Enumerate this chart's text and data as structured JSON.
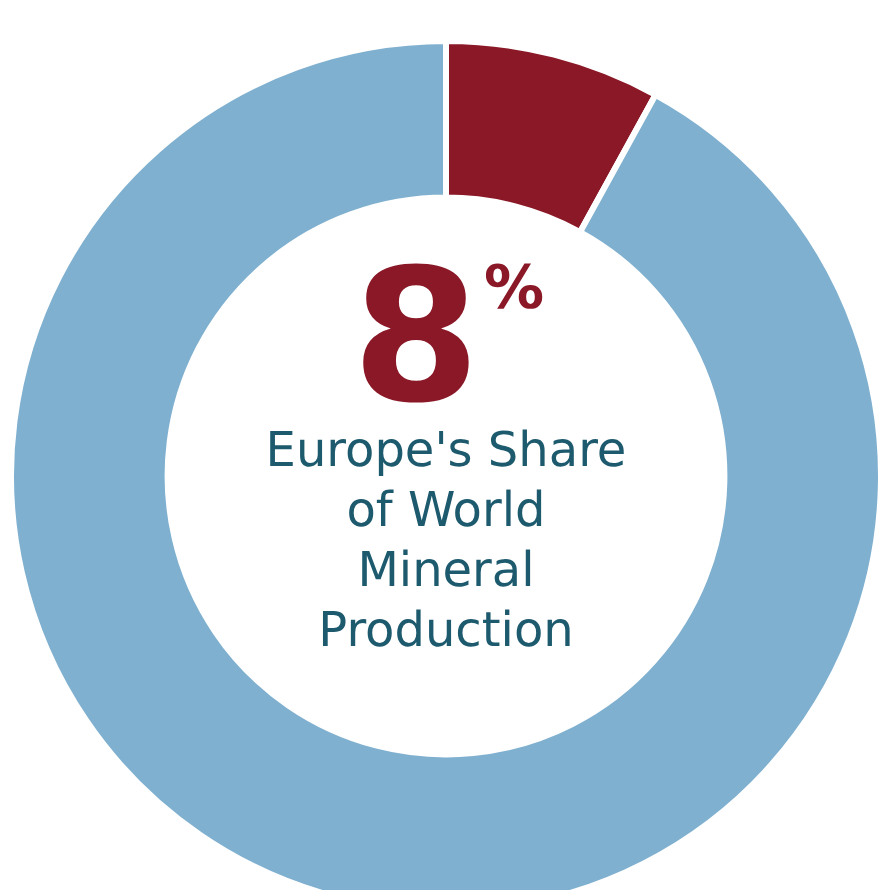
{
  "chart_data": {
    "type": "donut",
    "title": "Europe's Share of World Mineral Production",
    "categories": [
      null,
      null
    ],
    "values": [
      8,
      92
    ],
    "colors": [
      "#8a1827",
      "#7fb0cf"
    ],
    "value_labels": [
      "8%",
      null
    ],
    "legend": false
  }
}
